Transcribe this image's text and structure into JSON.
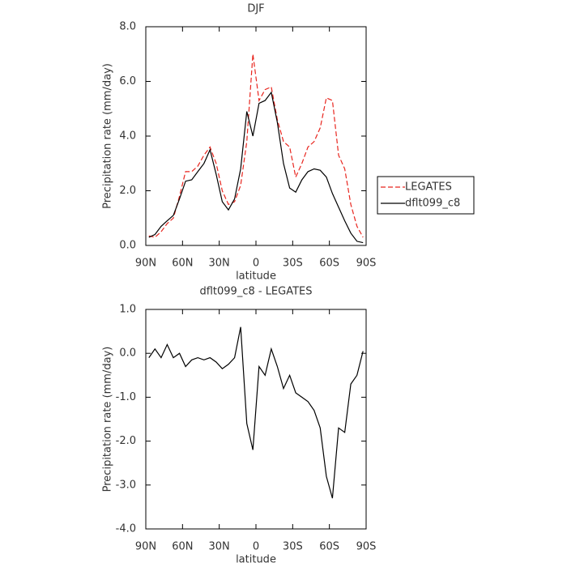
{
  "chart_data": [
    {
      "type": "line",
      "title": "DJF",
      "xlabel": "latitude",
      "ylabel": "Precipitation rate (mm/day)",
      "x": [
        87.5,
        82.5,
        77.5,
        72.5,
        67.5,
        62.5,
        57.5,
        52.5,
        47.5,
        42.5,
        37.5,
        32.5,
        27.5,
        22.5,
        17.5,
        12.5,
        7.5,
        2.5,
        -2.5,
        -7.5,
        -12.5,
        -17.5,
        -22.5,
        -27.5,
        -32.5,
        -37.5,
        -42.5,
        -47.5,
        -52.5,
        -57.5,
        -62.5,
        -67.5,
        -72.5,
        -77.5,
        -82.5,
        -87.5
      ],
      "series": [
        {
          "name": "LEGATES",
          "color": "#e8251e",
          "dash": true,
          "values": [
            0.35,
            0.3,
            0.5,
            0.8,
            1.0,
            1.8,
            2.7,
            2.7,
            2.9,
            3.3,
            3.6,
            3.0,
            2.0,
            1.5,
            1.6,
            2.2,
            3.8,
            7.0,
            5.3,
            5.7,
            5.8,
            4.6,
            3.8,
            3.6,
            2.5,
            3.0,
            3.6,
            3.8,
            4.3,
            5.4,
            5.3,
            3.3,
            2.8,
            1.5,
            0.7,
            0.3
          ]
        },
        {
          "name": "dflt099_c8",
          "color": "#000000",
          "dash": false,
          "values": [
            0.3,
            0.4,
            0.7,
            0.9,
            1.1,
            1.7,
            2.35,
            2.4,
            2.7,
            3.0,
            3.5,
            2.6,
            1.6,
            1.3,
            1.7,
            2.8,
            4.9,
            4.0,
            5.2,
            5.3,
            5.6,
            4.5,
            3.0,
            2.1,
            1.95,
            2.4,
            2.7,
            2.8,
            2.75,
            2.5,
            1.9,
            1.4,
            0.9,
            0.45,
            0.15,
            0.1
          ]
        }
      ],
      "xlim": [
        90,
        -90
      ],
      "xticks": [
        {
          "value": 90,
          "label": "90N"
        },
        {
          "value": 60,
          "label": "60N"
        },
        {
          "value": 30,
          "label": "30N"
        },
        0,
        {
          "value": -30,
          "label": "30S"
        },
        {
          "value": -60,
          "label": "60S"
        },
        {
          "value": -90,
          "label": "90S"
        }
      ],
      "ylim": [
        0,
        8
      ],
      "yticks": [
        {
          "value": 0,
          "label": "0.0"
        },
        {
          "value": 2,
          "label": "2.0"
        },
        {
          "value": 4,
          "label": "4.0"
        },
        {
          "value": 6,
          "label": "6.0"
        },
        {
          "value": 8,
          "label": "8.0"
        }
      ],
      "legend": "right"
    },
    {
      "type": "line",
      "title": "dflt099_c8 - LEGATES",
      "xlabel": "latitude",
      "ylabel": "Precipitation rate (mm/day)",
      "x": [
        87.5,
        82.5,
        77.5,
        72.5,
        67.5,
        62.5,
        57.5,
        52.5,
        47.5,
        42.5,
        37.5,
        32.5,
        27.5,
        22.5,
        17.5,
        12.5,
        7.5,
        2.5,
        -2.5,
        -7.5,
        -12.5,
        -17.5,
        -22.5,
        -27.5,
        -32.5,
        -37.5,
        -42.5,
        -47.5,
        -52.5,
        -57.5,
        -62.5,
        -67.5,
        -72.5,
        -77.5,
        -82.5,
        -87.5
      ],
      "values": [
        -0.1,
        0.1,
        -0.1,
        0.2,
        -0.1,
        0.0,
        -0.3,
        -0.15,
        -0.1,
        -0.15,
        -0.1,
        -0.2,
        -0.35,
        -0.25,
        -0.1,
        0.6,
        -1.6,
        -2.2,
        -0.3,
        -0.5,
        0.1,
        -0.3,
        -0.8,
        -0.5,
        -0.9,
        -1.0,
        -1.1,
        -1.3,
        -1.7,
        -2.8,
        -3.3,
        -1.7,
        -1.8,
        -0.7,
        -0.5,
        0.05
      ],
      "color": "#000000",
      "xlim": [
        90,
        -90
      ],
      "xticks": [
        {
          "value": 90,
          "label": "90N"
        },
        {
          "value": 60,
          "label": "60N"
        },
        {
          "value": 30,
          "label": "30N"
        },
        0,
        {
          "value": -30,
          "label": "30S"
        },
        {
          "value": -60,
          "label": "60S"
        },
        {
          "value": -90,
          "label": "90S"
        }
      ],
      "ylim": [
        -4,
        1
      ],
      "yticks": [
        {
          "value": 1,
          "label": "1.0"
        },
        {
          "value": 0,
          "label": "0.0"
        },
        {
          "value": -1,
          "label": "-1.0"
        },
        {
          "value": -2,
          "label": "-2.0"
        },
        {
          "value": -3,
          "label": "-3.0"
        },
        {
          "value": -4,
          "label": "-4.0"
        }
      ]
    }
  ]
}
